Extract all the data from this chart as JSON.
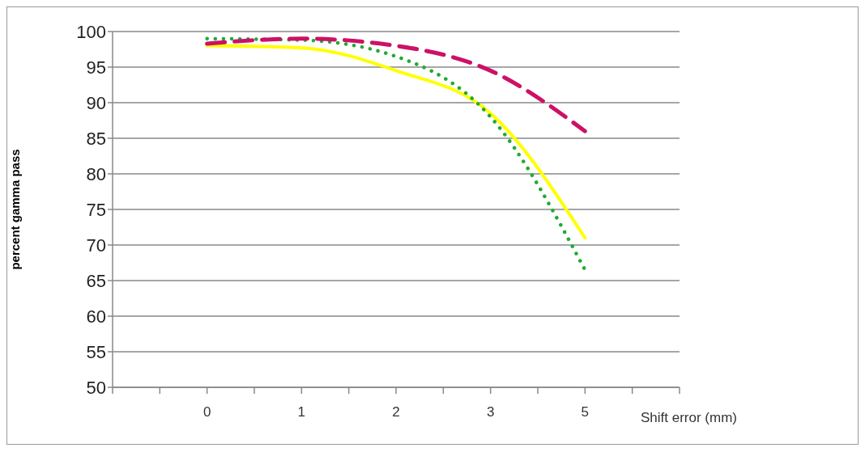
{
  "chart_data": {
    "type": "line",
    "xlabel": "Shift error (mm)",
    "ylabel": "percent gamma pass",
    "categories": [
      null,
      null,
      "0",
      null,
      "1",
      null,
      "2",
      null,
      "3",
      null,
      "5",
      null,
      null
    ],
    "series": [
      {
        "color": "#ffff00",
        "line_style": "solid",
        "values": [
          null,
          null,
          98,
          null,
          97.7,
          null,
          94.5,
          null,
          88.5,
          null,
          71,
          null,
          null
        ]
      },
      {
        "color": "#22aa33",
        "line_style": "dotted",
        "values": [
          null,
          null,
          99,
          null,
          98.8,
          null,
          96.5,
          null,
          88,
          null,
          66.5,
          null,
          null
        ]
      },
      {
        "color": "#cc1166",
        "line_style": "dashed",
        "values": [
          null,
          null,
          98.3,
          null,
          99,
          null,
          98,
          null,
          94.5,
          null,
          86,
          null,
          null
        ]
      }
    ],
    "ylim": [
      50,
      100
    ],
    "yticks": [
      50,
      55,
      60,
      65,
      70,
      75,
      80,
      85,
      90,
      95,
      100
    ],
    "grid": "y",
    "marker": "none"
  }
}
